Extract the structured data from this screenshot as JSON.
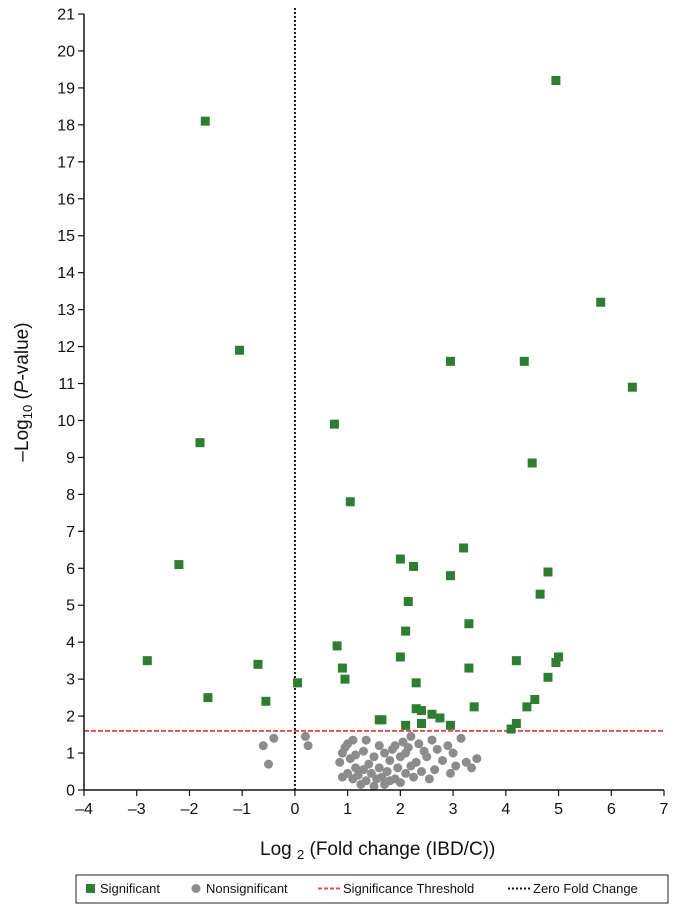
{
  "chart_data": {
    "type": "scatter",
    "title": "",
    "xlabel_parts": {
      "prefix": "Log ",
      "sub": "2",
      "rest": " (Fold change (IBD/C))"
    },
    "ylabel_parts": {
      "prefix": "–Log",
      "sub": "10",
      "open": " (",
      "italic": "P",
      "rest": "-value)"
    },
    "xlim": [
      -4,
      7
    ],
    "ylim": [
      0,
      21
    ],
    "x_ticks": [
      -4,
      -3,
      -2,
      -1,
      0,
      1,
      2,
      3,
      4,
      5,
      6,
      7
    ],
    "y_ticks": [
      0,
      1,
      2,
      3,
      4,
      5,
      6,
      7,
      8,
      9,
      10,
      11,
      12,
      13,
      14,
      15,
      16,
      17,
      18,
      19,
      20,
      21
    ],
    "x_tick_labels": [
      "–4",
      "–3",
      "–2",
      "–1",
      "0",
      "1",
      "2",
      "3",
      "4",
      "5",
      "6",
      "7"
    ],
    "y_tick_labels": [
      "0",
      "1",
      "2",
      "3",
      "4",
      "5",
      "6",
      "7",
      "8",
      "9",
      "10",
      "11",
      "12",
      "13",
      "14",
      "15",
      "16",
      "17",
      "18",
      "19",
      "20",
      "21"
    ],
    "grid": false,
    "legend_position": "bottom",
    "colors": {
      "significant": "#2e7d32",
      "nonsignificant": "#8c8c8c",
      "threshold": "#e05050",
      "zero": "#111111"
    },
    "series": [
      {
        "name": "Significant",
        "marker": "square",
        "points": [
          [
            -2.8,
            3.5
          ],
          [
            -2.2,
            6.1
          ],
          [
            -1.8,
            9.4
          ],
          [
            -1.7,
            18.1
          ],
          [
            -1.65,
            2.5
          ],
          [
            -1.05,
            11.9
          ],
          [
            -0.7,
            3.4
          ],
          [
            -0.55,
            2.4
          ],
          [
            0.05,
            2.9
          ],
          [
            0.75,
            9.9
          ],
          [
            0.8,
            3.9
          ],
          [
            0.9,
            3.3
          ],
          [
            0.95,
            3.0
          ],
          [
            1.05,
            7.8
          ],
          [
            1.6,
            1.9
          ],
          [
            1.65,
            1.9
          ],
          [
            2.0,
            6.25
          ],
          [
            2.0,
            3.6
          ],
          [
            2.1,
            4.3
          ],
          [
            2.15,
            5.1
          ],
          [
            2.1,
            1.75
          ],
          [
            2.25,
            6.05
          ],
          [
            2.3,
            2.9
          ],
          [
            2.3,
            2.2
          ],
          [
            2.4,
            2.15
          ],
          [
            2.4,
            1.8
          ],
          [
            2.6,
            2.05
          ],
          [
            2.75,
            1.95
          ],
          [
            2.95,
            11.6
          ],
          [
            2.95,
            5.8
          ],
          [
            2.95,
            1.75
          ],
          [
            3.2,
            6.55
          ],
          [
            3.3,
            4.5
          ],
          [
            3.3,
            3.3
          ],
          [
            3.4,
            2.25
          ],
          [
            4.1,
            1.65
          ],
          [
            4.2,
            3.5
          ],
          [
            4.2,
            1.8
          ],
          [
            4.35,
            11.6
          ],
          [
            4.4,
            2.25
          ],
          [
            4.5,
            8.85
          ],
          [
            4.55,
            2.45
          ],
          [
            4.65,
            5.3
          ],
          [
            4.8,
            5.9
          ],
          [
            4.8,
            3.05
          ],
          [
            4.95,
            19.2
          ],
          [
            4.95,
            3.45
          ],
          [
            5.0,
            3.6
          ],
          [
            5.8,
            13.2
          ],
          [
            6.4,
            10.9
          ]
        ]
      },
      {
        "name": "Nonsignificant",
        "marker": "circle",
        "points": [
          [
            -0.6,
            1.2
          ],
          [
            -0.5,
            0.7
          ],
          [
            -0.4,
            1.4
          ],
          [
            0.2,
            1.45
          ],
          [
            0.25,
            1.2
          ],
          [
            0.85,
            0.75
          ],
          [
            0.9,
            1.0
          ],
          [
            0.95,
            1.15
          ],
          [
            1.0,
            1.25
          ],
          [
            1.05,
            0.85
          ],
          [
            1.1,
            1.35
          ],
          [
            1.15,
            0.6
          ],
          [
            0.9,
            0.35
          ],
          [
            1.0,
            0.45
          ],
          [
            1.1,
            0.3
          ],
          [
            1.2,
            0.4
          ],
          [
            1.25,
            0.15
          ],
          [
            1.3,
            0.55
          ],
          [
            1.35,
            0.25
          ],
          [
            1.35,
            1.35
          ],
          [
            1.4,
            0.7
          ],
          [
            1.45,
            0.45
          ],
          [
            1.5,
            0.1
          ],
          [
            1.5,
            0.9
          ],
          [
            1.55,
            0.3
          ],
          [
            1.6,
            0.6
          ],
          [
            1.65,
            0.35
          ],
          [
            1.7,
            0.15
          ],
          [
            1.7,
            1.0
          ],
          [
            1.75,
            0.5
          ],
          [
            1.8,
            0.8
          ],
          [
            1.85,
            1.1
          ],
          [
            1.9,
            0.3
          ],
          [
            1.9,
            1.2
          ],
          [
            1.95,
            0.6
          ],
          [
            2.0,
            0.9
          ],
          [
            2.0,
            0.2
          ],
          [
            2.05,
            1.3
          ],
          [
            2.1,
            0.45
          ],
          [
            2.1,
            1.0
          ],
          [
            2.15,
            1.15
          ],
          [
            2.2,
            0.65
          ],
          [
            2.2,
            1.45
          ],
          [
            2.25,
            0.35
          ],
          [
            2.3,
            0.75
          ],
          [
            2.35,
            1.25
          ],
          [
            2.4,
            0.5
          ],
          [
            2.45,
            1.05
          ],
          [
            2.5,
            0.9
          ],
          [
            2.55,
            0.3
          ],
          [
            2.6,
            1.35
          ],
          [
            2.65,
            0.55
          ],
          [
            2.7,
            1.1
          ],
          [
            2.8,
            0.8
          ],
          [
            2.9,
            1.2
          ],
          [
            2.95,
            0.45
          ],
          [
            3.0,
            1.0
          ],
          [
            3.05,
            0.65
          ],
          [
            3.15,
            1.4
          ],
          [
            3.25,
            0.75
          ],
          [
            3.35,
            0.6
          ],
          [
            3.45,
            0.85
          ],
          [
            1.15,
            0.95
          ],
          [
            1.3,
            1.05
          ],
          [
            1.6,
            1.2
          ],
          [
            1.8,
            0.25
          ]
        ]
      }
    ],
    "reference_lines": [
      {
        "name": "Significance Threshold",
        "orientation": "horizontal",
        "value": 1.6,
        "style": "dashed"
      },
      {
        "name": "Zero Fold Change",
        "orientation": "vertical",
        "value": 0,
        "style": "dotted"
      }
    ],
    "legend": [
      "Significant",
      "Nonsignificant",
      "Significance Threshold",
      "Zero Fold Change"
    ]
  }
}
